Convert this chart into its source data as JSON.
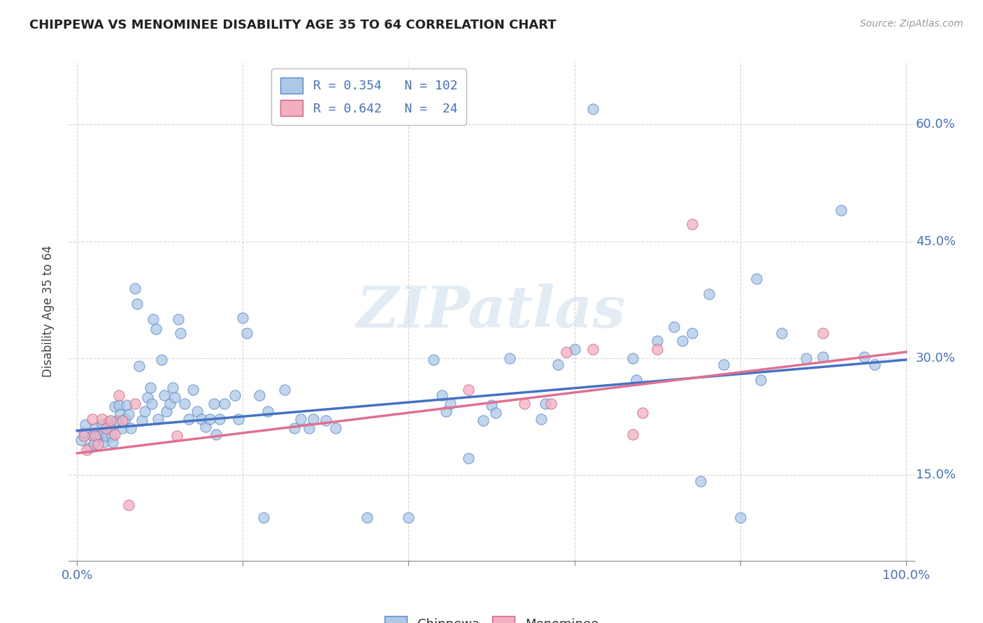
{
  "title": "CHIPPEWA VS MENOMINEE DISABILITY AGE 35 TO 64 CORRELATION CHART",
  "source": "Source: ZipAtlas.com",
  "ylabel": "Disability Age 35 to 64",
  "xlim": [
    -0.01,
    1.01
  ],
  "ylim": [
    0.04,
    0.68
  ],
  "xtick_positions": [
    0.0,
    0.2,
    0.4,
    0.6,
    0.8,
    1.0
  ],
  "xticklabels": [
    "0.0%",
    "",
    "",
    "",
    "",
    "100.0%"
  ],
  "ytick_positions": [
    0.15,
    0.3,
    0.45,
    0.6
  ],
  "yticklabels": [
    "15.0%",
    "30.0%",
    "45.0%",
    "60.0%"
  ],
  "watermark": "ZIPatlas",
  "blue_fill": "#adc8e6",
  "blue_edge": "#5588cc",
  "pink_fill": "#f2afc0",
  "pink_edge": "#d06080",
  "blue_line": "#4472c4",
  "pink_line": "#e07090",
  "blue_scatter": [
    [
      0.005,
      0.195
    ],
    [
      0.008,
      0.205
    ],
    [
      0.01,
      0.215
    ],
    [
      0.015,
      0.185
    ],
    [
      0.018,
      0.2
    ],
    [
      0.02,
      0.19
    ],
    [
      0.022,
      0.21
    ],
    [
      0.025,
      0.2
    ],
    [
      0.028,
      0.2
    ],
    [
      0.03,
      0.215
    ],
    [
      0.032,
      0.205
    ],
    [
      0.033,
      0.192
    ],
    [
      0.035,
      0.2
    ],
    [
      0.038,
      0.218
    ],
    [
      0.04,
      0.21
    ],
    [
      0.042,
      0.2
    ],
    [
      0.043,
      0.192
    ],
    [
      0.045,
      0.238
    ],
    [
      0.048,
      0.22
    ],
    [
      0.05,
      0.24
    ],
    [
      0.052,
      0.228
    ],
    [
      0.055,
      0.21
    ],
    [
      0.058,
      0.222
    ],
    [
      0.06,
      0.24
    ],
    [
      0.062,
      0.228
    ],
    [
      0.065,
      0.21
    ],
    [
      0.07,
      0.39
    ],
    [
      0.072,
      0.37
    ],
    [
      0.075,
      0.29
    ],
    [
      0.078,
      0.22
    ],
    [
      0.082,
      0.232
    ],
    [
      0.085,
      0.25
    ],
    [
      0.088,
      0.262
    ],
    [
      0.09,
      0.242
    ],
    [
      0.092,
      0.35
    ],
    [
      0.095,
      0.338
    ],
    [
      0.098,
      0.222
    ],
    [
      0.102,
      0.298
    ],
    [
      0.105,
      0.252
    ],
    [
      0.108,
      0.232
    ],
    [
      0.112,
      0.242
    ],
    [
      0.115,
      0.262
    ],
    [
      0.118,
      0.25
    ],
    [
      0.122,
      0.35
    ],
    [
      0.125,
      0.332
    ],
    [
      0.13,
      0.242
    ],
    [
      0.135,
      0.222
    ],
    [
      0.14,
      0.26
    ],
    [
      0.145,
      0.232
    ],
    [
      0.15,
      0.222
    ],
    [
      0.155,
      0.212
    ],
    [
      0.16,
      0.222
    ],
    [
      0.165,
      0.242
    ],
    [
      0.168,
      0.202
    ],
    [
      0.172,
      0.222
    ],
    [
      0.178,
      0.242
    ],
    [
      0.19,
      0.252
    ],
    [
      0.195,
      0.222
    ],
    [
      0.2,
      0.352
    ],
    [
      0.205,
      0.332
    ],
    [
      0.22,
      0.252
    ],
    [
      0.225,
      0.095
    ],
    [
      0.23,
      0.232
    ],
    [
      0.25,
      0.26
    ],
    [
      0.262,
      0.21
    ],
    [
      0.27,
      0.222
    ],
    [
      0.28,
      0.21
    ],
    [
      0.285,
      0.222
    ],
    [
      0.3,
      0.22
    ],
    [
      0.312,
      0.21
    ],
    [
      0.35,
      0.095
    ],
    [
      0.4,
      0.095
    ],
    [
      0.43,
      0.298
    ],
    [
      0.44,
      0.252
    ],
    [
      0.445,
      0.232
    ],
    [
      0.45,
      0.242
    ],
    [
      0.472,
      0.172
    ],
    [
      0.49,
      0.22
    ],
    [
      0.5,
      0.24
    ],
    [
      0.505,
      0.23
    ],
    [
      0.522,
      0.3
    ],
    [
      0.56,
      0.222
    ],
    [
      0.565,
      0.242
    ],
    [
      0.58,
      0.292
    ],
    [
      0.6,
      0.312
    ],
    [
      0.622,
      0.62
    ],
    [
      0.67,
      0.3
    ],
    [
      0.675,
      0.272
    ],
    [
      0.7,
      0.322
    ],
    [
      0.72,
      0.34
    ],
    [
      0.73,
      0.322
    ],
    [
      0.742,
      0.332
    ],
    [
      0.752,
      0.142
    ],
    [
      0.762,
      0.382
    ],
    [
      0.78,
      0.292
    ],
    [
      0.8,
      0.095
    ],
    [
      0.82,
      0.402
    ],
    [
      0.825,
      0.272
    ],
    [
      0.85,
      0.332
    ],
    [
      0.88,
      0.3
    ],
    [
      0.9,
      0.302
    ],
    [
      0.922,
      0.49
    ],
    [
      0.95,
      0.302
    ],
    [
      0.962,
      0.292
    ]
  ],
  "pink_scatter": [
    [
      0.008,
      0.2
    ],
    [
      0.012,
      0.182
    ],
    [
      0.018,
      0.222
    ],
    [
      0.022,
      0.2
    ],
    [
      0.025,
      0.19
    ],
    [
      0.03,
      0.222
    ],
    [
      0.035,
      0.21
    ],
    [
      0.04,
      0.22
    ],
    [
      0.045,
      0.202
    ],
    [
      0.05,
      0.252
    ],
    [
      0.055,
      0.22
    ],
    [
      0.062,
      0.112
    ],
    [
      0.07,
      0.242
    ],
    [
      0.12,
      0.2
    ],
    [
      0.472,
      0.26
    ],
    [
      0.54,
      0.242
    ],
    [
      0.572,
      0.242
    ],
    [
      0.59,
      0.308
    ],
    [
      0.622,
      0.312
    ],
    [
      0.67,
      0.202
    ],
    [
      0.682,
      0.23
    ],
    [
      0.7,
      0.312
    ],
    [
      0.742,
      0.472
    ],
    [
      0.9,
      0.332
    ]
  ],
  "blue_trend_x": [
    0.0,
    1.0
  ],
  "blue_trend_y": [
    0.207,
    0.298
  ],
  "pink_trend_x": [
    0.0,
    1.0
  ],
  "pink_trend_y": [
    0.178,
    0.308
  ],
  "background_color": "#ffffff",
  "grid_color": "#cccccc",
  "title_color": "#222222",
  "axis_label_color": "#444444",
  "tick_color": "#4472c4"
}
